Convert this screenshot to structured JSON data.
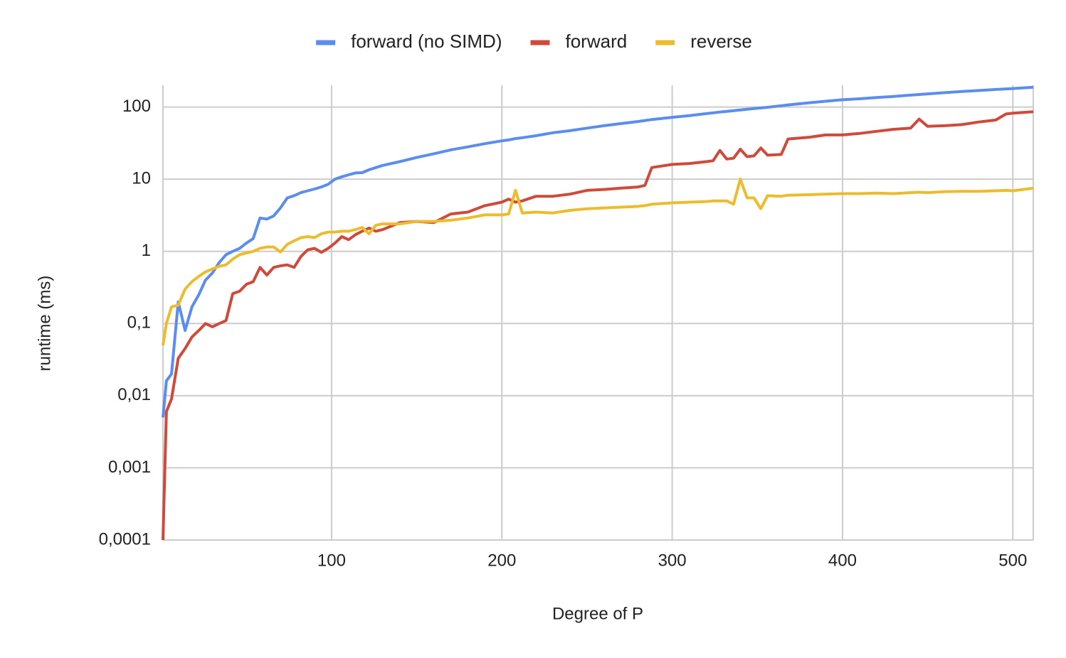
{
  "chart_data": {
    "type": "line",
    "log_y": true,
    "grid": true,
    "legend": "top",
    "x_label": "Degree of P",
    "y_label": "runtime (ms)",
    "xlim": [
      1,
      512
    ],
    "xticks": [
      100,
      200,
      300,
      400,
      500
    ],
    "ylim": [
      0.0001,
      200
    ],
    "yticks": [
      {
        "value": 0.0001,
        "label": "0,0001"
      },
      {
        "value": 0.001,
        "label": "0,001"
      },
      {
        "value": 0.01,
        "label": "0,01"
      },
      {
        "value": 0.1,
        "label": "0,1"
      },
      1,
      10,
      100
    ],
    "x": [
      1,
      3,
      6,
      10,
      14,
      18,
      22,
      26,
      30,
      34,
      38,
      42,
      46,
      50,
      54,
      58,
      62,
      66,
      70,
      74,
      78,
      82,
      86,
      90,
      94,
      98,
      102,
      106,
      110,
      114,
      118,
      122,
      126,
      130,
      140,
      150,
      160,
      170,
      180,
      190,
      200,
      204,
      208,
      212,
      220,
      230,
      240,
      250,
      260,
      270,
      280,
      284,
      288,
      300,
      310,
      320,
      324,
      328,
      332,
      336,
      340,
      344,
      348,
      352,
      356,
      364,
      368,
      380,
      390,
      400,
      410,
      420,
      430,
      440,
      445,
      450,
      460,
      470,
      480,
      490,
      496,
      500,
      512
    ],
    "series": [
      {
        "name": "forward (no SIMD)",
        "color": "#5b8def",
        "values": [
          0.005,
          0.016,
          0.02,
          0.2,
          0.08,
          0.17,
          0.25,
          0.4,
          0.5,
          0.7,
          0.9,
          1.0,
          1.1,
          1.3,
          1.5,
          2.9,
          2.8,
          3.1,
          4.0,
          5.5,
          5.9,
          6.5,
          6.9,
          7.3,
          7.8,
          8.5,
          10,
          10.8,
          11.5,
          12.2,
          12.3,
          13.5,
          14.5,
          15.5,
          17.5,
          20,
          22.5,
          25.5,
          28,
          31,
          34,
          35,
          36.5,
          37.5,
          40,
          44,
          47,
          51,
          55,
          59,
          63,
          65,
          67,
          72,
          76,
          81,
          83,
          85,
          87,
          89,
          91,
          93,
          95,
          97,
          99,
          104,
          107,
          114,
          120,
          126,
          130,
          135,
          140,
          146,
          149,
          152,
          158,
          164,
          169,
          175,
          178,
          180,
          188
        ]
      },
      {
        "name": "forward",
        "color": "#d04a3b",
        "values": [
          0.0001,
          0.006,
          0.009,
          0.033,
          0.045,
          0.065,
          0.08,
          0.1,
          0.09,
          0.1,
          0.11,
          0.26,
          0.28,
          0.35,
          0.38,
          0.6,
          0.47,
          0.6,
          0.63,
          0.65,
          0.6,
          0.85,
          1.05,
          1.1,
          0.97,
          1.1,
          1.3,
          1.6,
          1.45,
          1.7,
          1.9,
          2.1,
          1.9,
          2.0,
          2.5,
          2.6,
          2.5,
          3.3,
          3.5,
          4.3,
          4.8,
          5.3,
          4.8,
          5.0,
          5.8,
          5.8,
          6.2,
          7.0,
          7.2,
          7.5,
          7.8,
          8.2,
          14.5,
          16,
          16.5,
          17.5,
          18,
          25,
          19,
          19.5,
          26,
          20.5,
          21,
          27,
          21.5,
          22,
          36,
          38,
          41,
          41,
          43,
          46,
          49,
          51,
          68,
          54,
          55,
          57,
          62,
          66,
          80,
          82,
          86
        ]
      },
      {
        "name": "reverse",
        "color": "#ecbc2c",
        "values": [
          0.05,
          0.1,
          0.17,
          0.18,
          0.3,
          0.38,
          0.45,
          0.52,
          0.57,
          0.62,
          0.65,
          0.78,
          0.9,
          0.95,
          1.0,
          1.1,
          1.15,
          1.15,
          0.98,
          1.25,
          1.4,
          1.55,
          1.6,
          1.55,
          1.75,
          1.85,
          1.85,
          1.9,
          1.9,
          2.0,
          2.15,
          1.75,
          2.3,
          2.4,
          2.4,
          2.6,
          2.6,
          2.7,
          2.9,
          3.2,
          3.2,
          3.3,
          7.0,
          3.4,
          3.5,
          3.4,
          3.7,
          3.9,
          4.0,
          4.1,
          4.2,
          4.3,
          4.5,
          4.7,
          4.8,
          4.9,
          5.0,
          5.0,
          5.0,
          4.5,
          10,
          5.5,
          5.5,
          3.9,
          5.9,
          5.8,
          6.0,
          6.1,
          6.2,
          6.3,
          6.3,
          6.4,
          6.3,
          6.5,
          6.6,
          6.5,
          6.7,
          6.8,
          6.8,
          6.9,
          7.0,
          6.9,
          7.5
        ]
      }
    ]
  }
}
